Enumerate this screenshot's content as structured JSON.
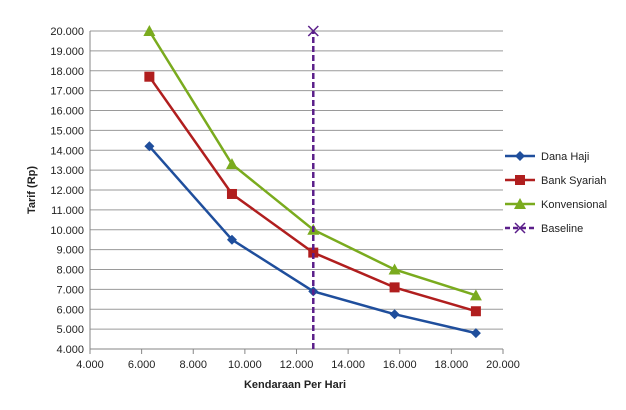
{
  "chart_data": {
    "type": "line",
    "xlabel": "Kendaraan Per Hari",
    "ylabel": "Tarif (Rp)",
    "xlim": [
      4000,
      20000
    ],
    "ylim": [
      4000,
      20000
    ],
    "x_ticks": [
      4000,
      6000,
      8000,
      10000,
      12000,
      14000,
      16000,
      18000,
      20000
    ],
    "x_tick_labels": [
      "4.000",
      "6.000",
      "8.000",
      "10.000",
      "12.000",
      "14.000",
      "16.000",
      "18.000",
      "20.000"
    ],
    "y_ticks": [
      4000,
      5000,
      6000,
      7000,
      8000,
      9000,
      10000,
      11000,
      12000,
      13000,
      14000,
      15000,
      16000,
      17000,
      18000,
      19000,
      20000
    ],
    "y_tick_labels": [
      "4.000",
      "5.000",
      "6.000",
      "7.000",
      "8.000",
      "9.000",
      "10.000",
      "11.000",
      "12.000",
      "13.000",
      "14.000",
      "15.000",
      "16.000",
      "17.000",
      "18.000",
      "19.000",
      "20.000"
    ],
    "grid": "horizontal",
    "legend_position": "right",
    "series": [
      {
        "name": "Dana Haji",
        "color": "#1f4e9c",
        "marker": "diamond",
        "x": [
          6300,
          9500,
          12650,
          15800,
          18950
        ],
        "y": [
          14200,
          9500,
          6900,
          5750,
          4800
        ]
      },
      {
        "name": "Bank Syariah",
        "color": "#b01e1e",
        "marker": "square",
        "x": [
          6300,
          9500,
          12650,
          15800,
          18950
        ],
        "y": [
          17700,
          11800,
          8850,
          7100,
          5900
        ]
      },
      {
        "name": "Konvensional",
        "color": "#7aab1e",
        "marker": "triangle",
        "x": [
          6300,
          9500,
          12650,
          15800,
          18950
        ],
        "y": [
          20000,
          13300,
          10000,
          8000,
          6700
        ]
      },
      {
        "name": "Baseline",
        "color": "#5b1f8a",
        "marker": "x",
        "dashed": true,
        "x": [
          12650,
          12650
        ],
        "y": [
          4000,
          20000
        ]
      }
    ]
  }
}
